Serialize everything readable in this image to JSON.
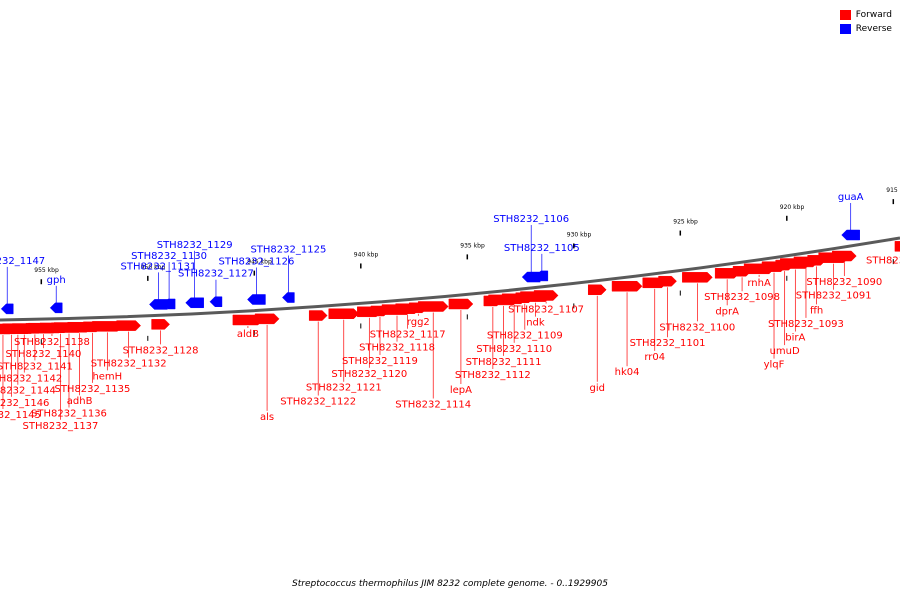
{
  "legend": {
    "forward": {
      "label": "Forward",
      "color": "#ff0000"
    },
    "reverse": {
      "label": "Reverse",
      "color": "#0000ff"
    }
  },
  "caption": "Streptococcus thermophilus JIM 8232 complete genome. - 0..1929905",
  "scale": {
    "labels": [
      {
        "text": "955 kbp",
        "kbp": 955
      },
      {
        "text": "950 kbp",
        "kbp": 950
      },
      {
        "text": "945 kbp",
        "kbp": 945
      },
      {
        "text": "940 kbp",
        "kbp": 940
      },
      {
        "text": "935 kbp",
        "kbp": 935
      },
      {
        "text": "930 kbp",
        "kbp": 930
      },
      {
        "text": "925 kbp",
        "kbp": 925
      },
      {
        "text": "920 kbp",
        "kbp": 920
      },
      {
        "text": "915 kbp",
        "kbp": 915
      }
    ]
  },
  "reverse_genes": [
    {
      "label": "gph",
      "kbp": 954.3
    },
    {
      "label": "STH8232_1131",
      "kbp": 949.5
    },
    {
      "label": "STH8232_1130",
      "kbp": 949.0
    },
    {
      "label": "STH8232_1129",
      "kbp": 947.8
    },
    {
      "label": "STH8232_1127",
      "kbp": 946.8
    },
    {
      "label": "STH8232_1126",
      "kbp": 944.9
    },
    {
      "label": "STH8232_1125",
      "kbp": 943.4
    },
    {
      "label": "STH8232_1106",
      "kbp": 932.0
    },
    {
      "label": "STH8232_1105",
      "kbp": 931.5
    },
    {
      "label": "guaA",
      "kbp": 917.0
    },
    {
      "label": "STH8232_1147",
      "kbp": 956.6
    }
  ],
  "forward_genes": [
    {
      "label": "STH8232_1088",
      "kbp": 914.5
    },
    {
      "label": "STH8232_1090",
      "kbp": 917.3
    },
    {
      "label": "STH8232_1091",
      "kbp": 917.8
    },
    {
      "label": "ffh",
      "kbp": 918.6
    },
    {
      "label": "STH8232_1093",
      "kbp": 919.1
    },
    {
      "label": "birA",
      "kbp": 919.6
    },
    {
      "label": "umuD",
      "kbp": 920.1
    },
    {
      "label": "ylqF",
      "kbp": 920.6
    },
    {
      "label": "rnhA",
      "kbp": 921.3
    },
    {
      "label": "STH8232_1098",
      "kbp": 922.1
    },
    {
      "label": "dprA",
      "kbp": 922.8
    },
    {
      "label": "STH8232_1100",
      "kbp": 924.2
    },
    {
      "label": "STH8232_1101",
      "kbp": 925.6
    },
    {
      "label": "rr04",
      "kbp": 926.2
    },
    {
      "label": "hk04",
      "kbp": 927.5
    },
    {
      "label": "gid",
      "kbp": 928.9
    },
    {
      "label": "STH8232_1107",
      "kbp": 931.3
    },
    {
      "label": "ndk",
      "kbp": 931.8
    },
    {
      "label": "STH8232_1109",
      "kbp": 932.3
    },
    {
      "label": "STH8232_1110",
      "kbp": 932.8
    },
    {
      "label": "STH8232_1111",
      "kbp": 933.3
    },
    {
      "label": "STH8232_1112",
      "kbp": 933.8
    },
    {
      "label": "lepA",
      "kbp": 935.3
    },
    {
      "label": "STH8232_1114",
      "kbp": 936.6
    },
    {
      "label": "rgg2",
      "kbp": 937.3
    },
    {
      "label": "STH8232_1117",
      "kbp": 937.8
    },
    {
      "label": "STH8232_1118",
      "kbp": 938.3
    },
    {
      "label": "STH8232_1119",
      "kbp": 939.1
    },
    {
      "label": "STH8232_1120",
      "kbp": 939.6
    },
    {
      "label": "STH8232_1121",
      "kbp": 940.8
    },
    {
      "label": "STH8232_1122",
      "kbp": 942.0
    },
    {
      "label": "als",
      "kbp": 944.4
    },
    {
      "label": "aldB",
      "kbp": 945.3
    },
    {
      "label": "STH8232_1128",
      "kbp": 949.4
    },
    {
      "label": "STH8232_1132",
      "kbp": 950.9
    },
    {
      "label": "hemH",
      "kbp": 951.9
    },
    {
      "label": "STH8232_1135",
      "kbp": 952.6
    },
    {
      "label": "adhB",
      "kbp": 953.2
    },
    {
      "label": "STH8232_1136",
      "kbp": 953.7
    },
    {
      "label": "STH8232_1137",
      "kbp": 954.1
    },
    {
      "label": "STH8232_1138",
      "kbp": 954.5
    },
    {
      "label": "STH8232_1140",
      "kbp": 954.9
    },
    {
      "label": "STH8232_1141",
      "kbp": 955.3
    },
    {
      "label": "STH8232_1142",
      "kbp": 955.8
    },
    {
      "label": "STH8232_1144",
      "kbp": 956.1
    },
    {
      "label": "STH8232_1146",
      "kbp": 956.4
    },
    {
      "label": "STH8232_1145",
      "kbp": 956.8
    }
  ]
}
